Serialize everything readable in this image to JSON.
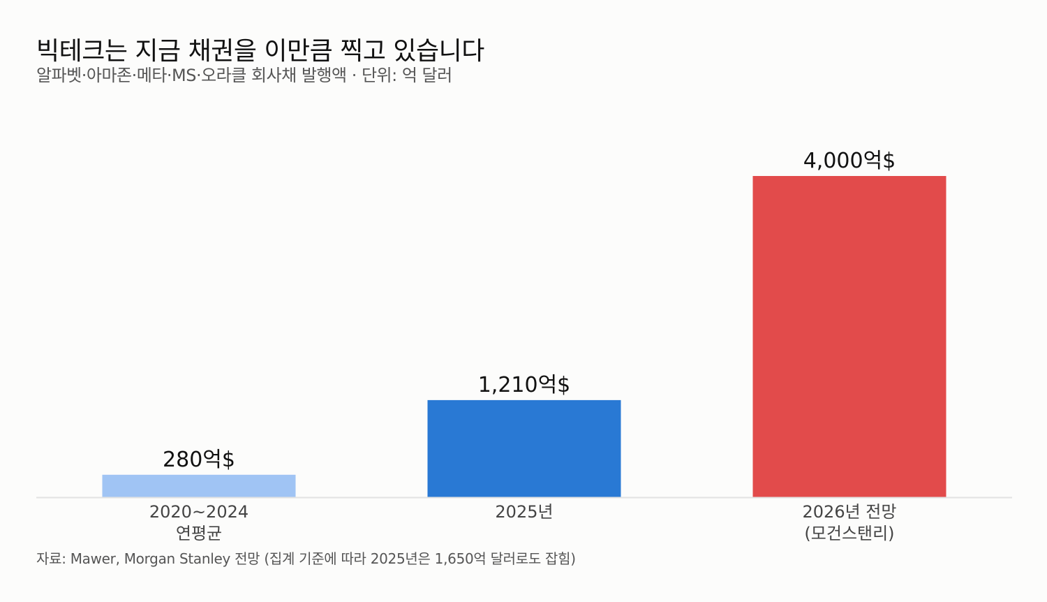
{
  "header": {
    "title": "빅테크는 지금 채권을 이만큼 찍고 있습니다",
    "subtitle": "알파벳·아마존·메타·MS·오라클 회사채 발행액 · 단위: 억 달러"
  },
  "footer": {
    "source": "자료: Mawer, Morgan Stanley 전망 (집계 기준에 따라 2025년은 1,650억 달러로도 잡힘)"
  },
  "chart_data": {
    "type": "bar",
    "title": "빅테크는 지금 채권을 이만큼 찍고 있습니다",
    "subtitle": "알파벳·아마존·메타·MS·오라클 회사채 발행액 · 단위: 억 달러",
    "categories": [
      [
        "2020~2024",
        "연평균"
      ],
      [
        "2025년"
      ],
      [
        "2026년 전망",
        "(모건스탠리)"
      ]
    ],
    "values": [
      280,
      1210,
      4000
    ],
    "value_labels": [
      "280억$",
      "1,210억$",
      "4,000억$"
    ],
    "colors": [
      "#a0c4f4",
      "#2979d4",
      "#e24b4b"
    ],
    "ylim": [
      0,
      4000
    ],
    "grid": false,
    "legend": "none",
    "axis_color": "#e2e2e2",
    "label_color": "#111111",
    "tick_color": "#444444"
  }
}
